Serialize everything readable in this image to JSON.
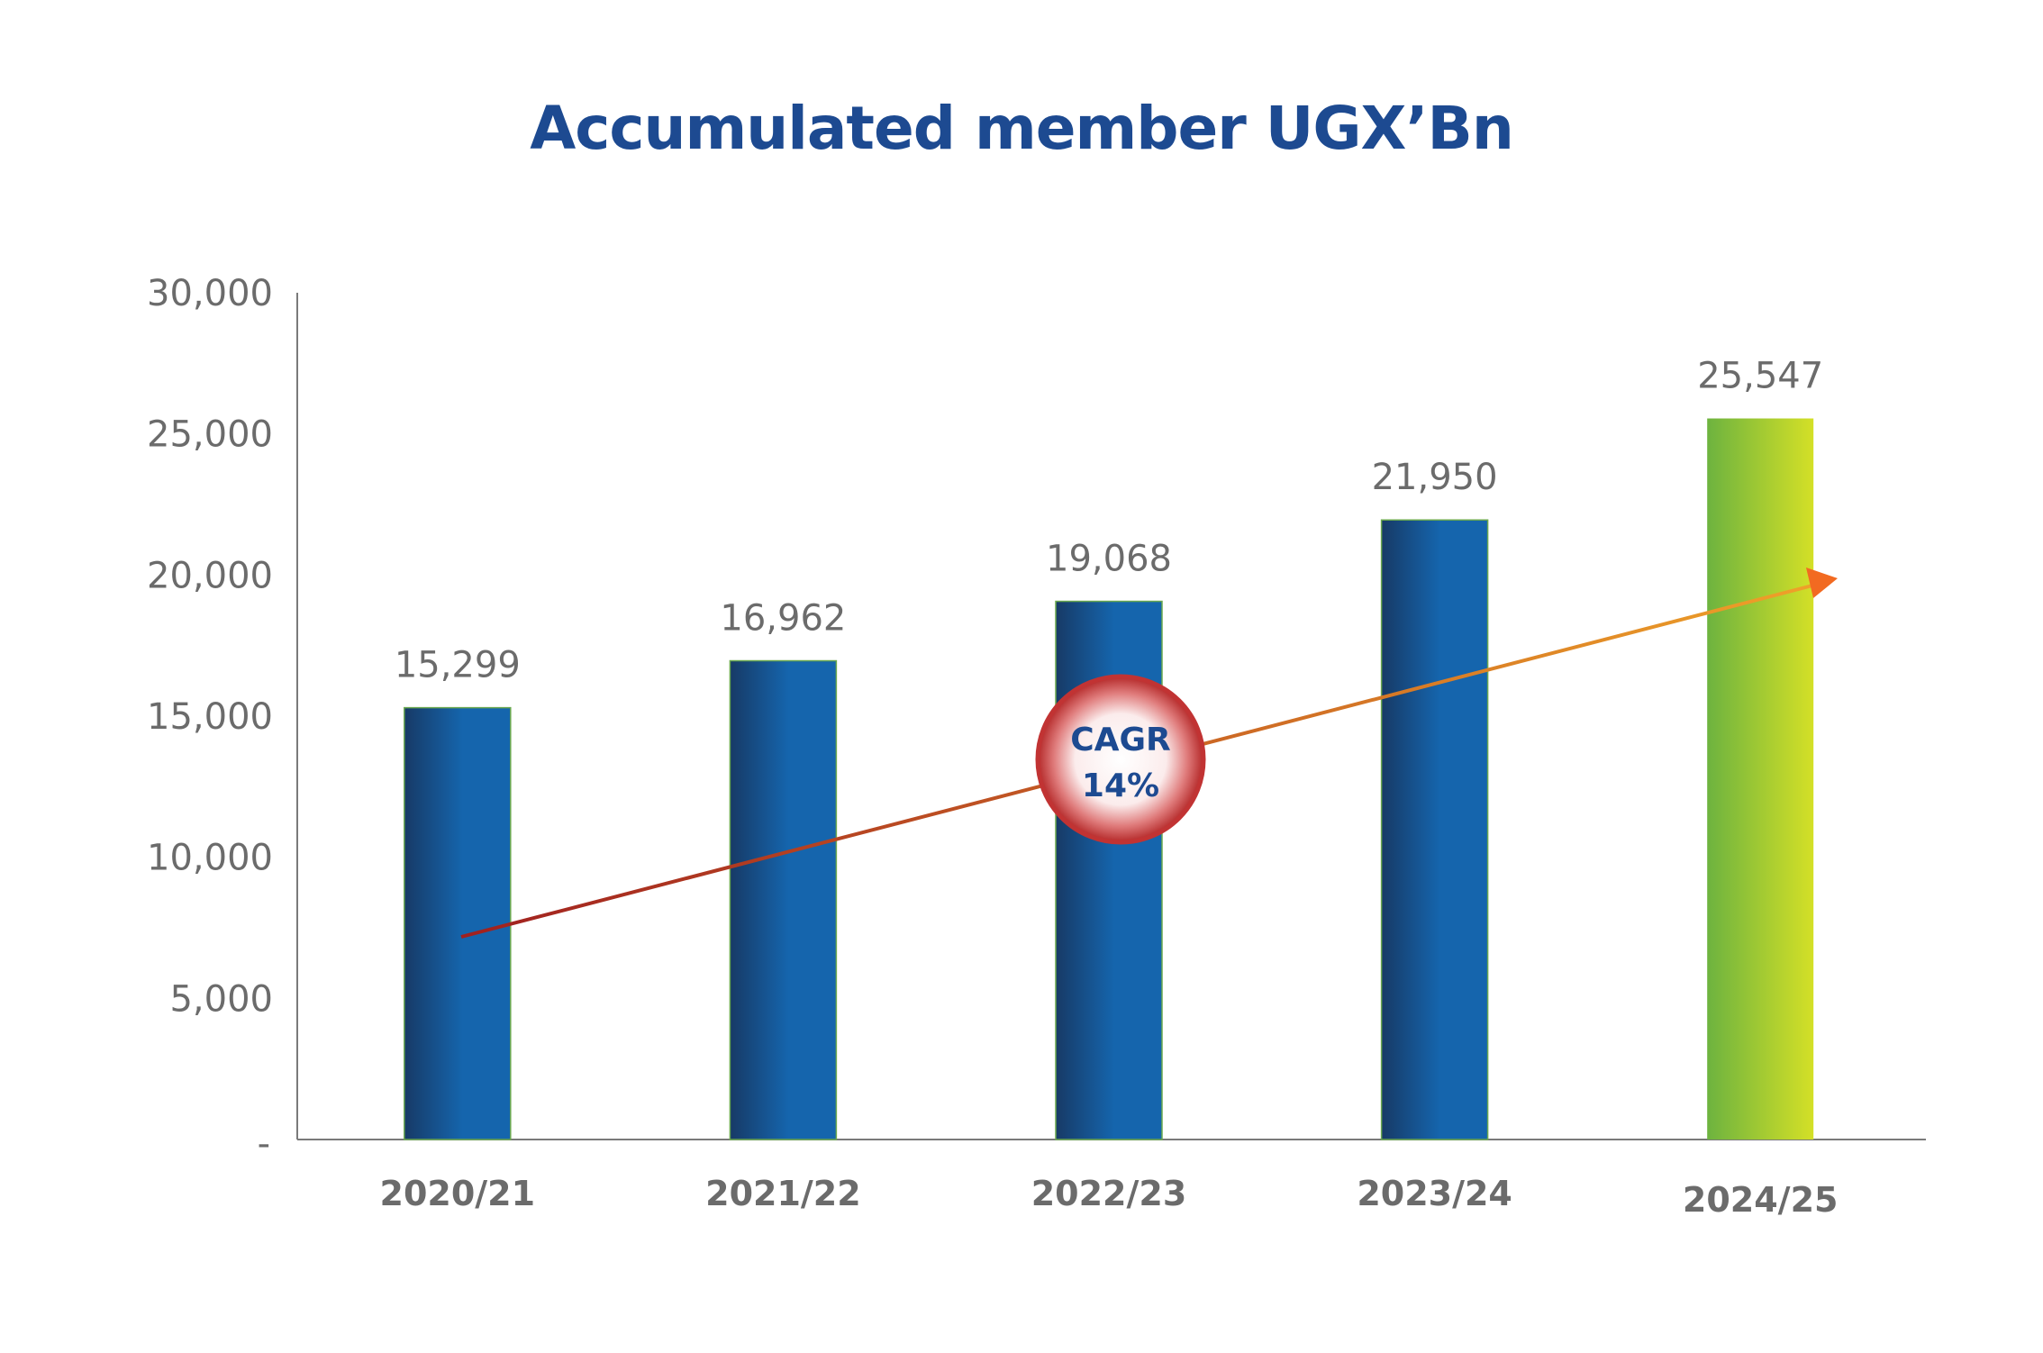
{
  "chart_data": {
    "type": "bar",
    "title": "Accumulated member UGX’Bn",
    "categories": [
      "2020/21",
      "2021/22",
      "2022/23",
      "2023/24",
      "2024/25"
    ],
    "values": [
      15299,
      16962,
      19068,
      21950,
      25547
    ],
    "data_labels": [
      "15,299",
      "16,962",
      "19,068",
      "21,950",
      "25,547"
    ],
    "ylim": [
      0,
      30000
    ],
    "yticks": [
      0,
      5000,
      10000,
      15000,
      20000,
      25000,
      30000
    ],
    "ytick_labels": [
      "-",
      "5,000",
      "10,000",
      "15,000",
      "20,000",
      "25,000",
      "30,000"
    ],
    "grid": false,
    "legend": "none",
    "colors": {
      "bar_dark": "#173a66",
      "bar_light": "#1565ad",
      "highlight_left": "#6db33f",
      "highlight_right": "#d4e027",
      "trend_start": "#a0201f",
      "trend_end": "#f0a329",
      "title": "#1d4a91",
      "axis": "#7a7a7a"
    },
    "annotation": {
      "line1": "CAGR",
      "line2": "14%"
    }
  }
}
